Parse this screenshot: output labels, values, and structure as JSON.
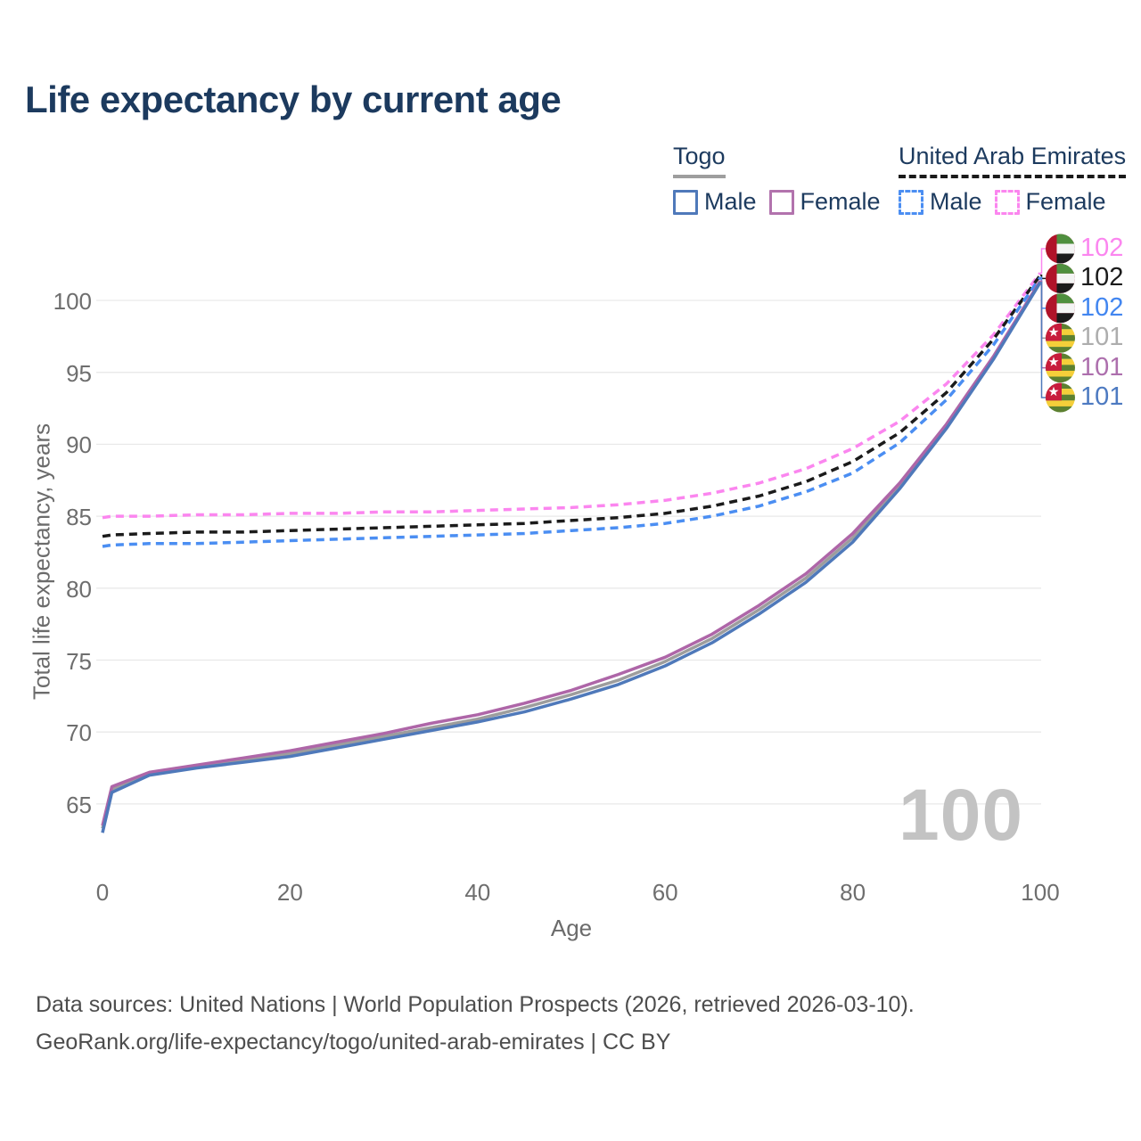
{
  "header": {
    "title": "Life expectancy by current age"
  },
  "legend": {
    "togo": {
      "title": "Togo",
      "male_label": "Male",
      "female_label": "Female",
      "male_color": "#4f79ba",
      "female_color": "#b273ad",
      "underline_color": "#9e9e9e"
    },
    "uae": {
      "title": "United Arab Emirates",
      "male_label": "Male",
      "female_label": "Female",
      "male_color": "#4b8ef2",
      "female_color": "#fb86ef",
      "underline_color": "#1a1a1a"
    }
  },
  "watermark": {
    "text": "100"
  },
  "footer": {
    "line1": "Data sources: United Nations | World Population Prospects (2026, retrieved 2026-03-10).",
    "line2": "GeoRank.org/life-expectancy/togo/united-arab-emirates | CC BY"
  },
  "chart_data": {
    "type": "line",
    "title": "Life expectancy by current age",
    "xlabel": "Age",
    "ylabel": "Total life expectancy, years",
    "x_ticks": [
      0,
      20,
      40,
      60,
      80,
      100
    ],
    "y_ticks": [
      65,
      70,
      75,
      80,
      85,
      90,
      95,
      100
    ],
    "xlim": [
      0,
      100
    ],
    "ylim": [
      62,
      103
    ],
    "grid": "horizontal",
    "legend_position": "top-right",
    "x": [
      0,
      1,
      5,
      10,
      15,
      20,
      25,
      30,
      35,
      40,
      45,
      50,
      55,
      60,
      65,
      70,
      75,
      80,
      85,
      90,
      95,
      100
    ],
    "series": [
      {
        "id": "uae-female",
        "country": "United Arab Emirates",
        "sex": "Female",
        "color": "#fb86ef",
        "dashed": true,
        "end_label": "102",
        "end_label_color": "#fb86ef",
        "values": [
          84.9,
          85,
          85,
          85.1,
          85.1,
          85.2,
          85.2,
          85.3,
          85.3,
          85.4,
          85.5,
          85.6,
          85.8,
          86.1,
          86.6,
          87.3,
          88.3,
          89.7,
          91.6,
          94.2,
          97.6,
          101.9
        ]
      },
      {
        "id": "uae-average",
        "country": "United Arab Emirates",
        "sex": "Both",
        "color": "#1b1b1b",
        "dashed": true,
        "end_label": "102",
        "end_label_color": "#1b1b1b",
        "values": [
          83.6,
          83.7,
          83.8,
          83.9,
          83.9,
          84,
          84.1,
          84.2,
          84.3,
          84.4,
          84.5,
          84.7,
          84.9,
          85.2,
          85.7,
          86.4,
          87.4,
          88.8,
          90.8,
          93.6,
          97.3,
          101.75
        ]
      },
      {
        "id": "uae-male",
        "country": "United Arab Emirates",
        "sex": "Male",
        "color": "#4b8ef2",
        "dashed": true,
        "end_label": "102",
        "end_label_color": "#4286f0",
        "values": [
          82.9,
          83,
          83.1,
          83.1,
          83.2,
          83.3,
          83.4,
          83.5,
          83.6,
          83.7,
          83.8,
          84,
          84.2,
          84.5,
          85,
          85.7,
          86.7,
          88,
          90.1,
          93.1,
          96.9,
          101.6
        ]
      },
      {
        "id": "togo-average",
        "country": "Togo",
        "sex": "Both",
        "color": "#9d9d9d",
        "dashed": false,
        "end_label": "101",
        "end_label_color": "#adadad",
        "values": [
          63.3,
          66,
          67.1,
          67.6,
          68,
          68.5,
          69.1,
          69.7,
          70.3,
          70.9,
          71.7,
          72.6,
          73.6,
          74.9,
          76.5,
          78.5,
          80.7,
          83.5,
          87.1,
          91.3,
          96,
          101.3
        ]
      },
      {
        "id": "togo-female",
        "country": "Togo",
        "sex": "Female",
        "color": "#ae66a8",
        "dashed": false,
        "end_label": "101",
        "end_label_color": "#ad6fad",
        "values": [
          63.5,
          66.2,
          67.2,
          67.7,
          68.2,
          68.7,
          69.3,
          69.9,
          70.6,
          71.2,
          72,
          72.9,
          74,
          75.2,
          76.8,
          78.8,
          81,
          83.8,
          87.3,
          91.4,
          96.1,
          101.35
        ]
      },
      {
        "id": "togo-male",
        "country": "Togo",
        "sex": "Male",
        "color": "#4f79ba",
        "dashed": false,
        "end_label": "101",
        "end_label_color": "#4d7ac1",
        "values": [
          63,
          65.8,
          67,
          67.5,
          67.9,
          68.3,
          68.9,
          69.5,
          70.1,
          70.7,
          71.4,
          72.3,
          73.3,
          74.6,
          76.2,
          78.2,
          80.4,
          83.2,
          86.9,
          91.1,
          95.9,
          101.25
        ]
      }
    ]
  }
}
